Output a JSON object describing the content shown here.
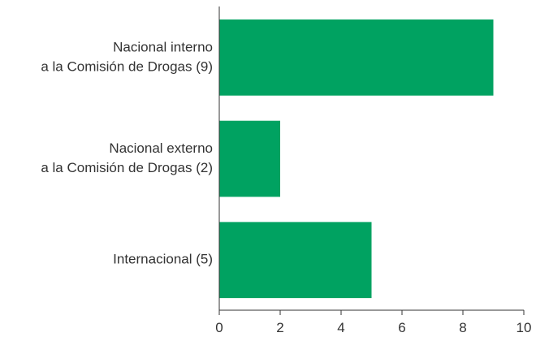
{
  "chart_data": {
    "type": "bar",
    "orientation": "horizontal",
    "categories": [
      [
        "Nacional interno",
        "a la Comisión de Drogas (9)"
      ],
      [
        "Nacional externo",
        "a la Comisión de Drogas (2)"
      ],
      [
        "Internacional (5)"
      ]
    ],
    "values": [
      9,
      2,
      5
    ],
    "xlim": [
      0,
      10
    ],
    "xticks": [
      "0",
      "2",
      "4",
      "6",
      "8",
      "10"
    ],
    "xtick_values": [
      0,
      2,
      4,
      6,
      8,
      10
    ],
    "grid": false,
    "colors": {
      "bar": "#00a261",
      "axis": "#333333",
      "text": "#333333"
    }
  }
}
